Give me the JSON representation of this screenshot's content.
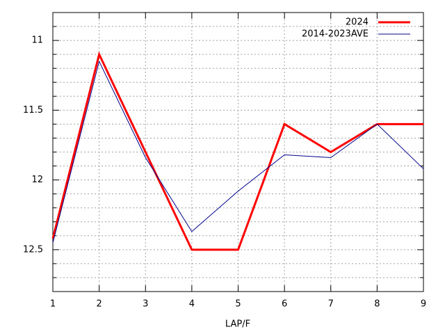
{
  "chart_data": {
    "type": "line",
    "xlabel": "LAP/F",
    "x": [
      1,
      2,
      3,
      4,
      5,
      6,
      7,
      8,
      9
    ],
    "xlim": [
      1,
      9
    ],
    "xticks": [
      1,
      2,
      3,
      4,
      5,
      6,
      7,
      8,
      9
    ],
    "ylim": [
      10.8,
      12.8
    ],
    "y_reversed": true,
    "yticks": [
      11,
      11.5,
      12,
      12.5
    ],
    "minor_yticks": [
      10.9,
      11.1,
      11.2,
      11.3,
      11.4,
      11.6,
      11.7,
      11.8,
      11.9,
      12.1,
      12.2,
      12.3,
      12.4,
      12.6,
      12.7
    ],
    "grid": true,
    "legend": "top-right",
    "series": [
      {
        "name": "2024",
        "color": "#ff0000",
        "width": 3,
        "values": [
          12.42,
          11.1,
          11.8,
          12.5,
          12.5,
          11.6,
          11.8,
          11.6,
          11.6
        ]
      },
      {
        "name": "2014-2023AVE",
        "color": "#00008b",
        "width": 1,
        "values": [
          12.45,
          11.15,
          11.84,
          12.37,
          12.08,
          11.82,
          11.84,
          11.6,
          11.92
        ]
      }
    ]
  }
}
